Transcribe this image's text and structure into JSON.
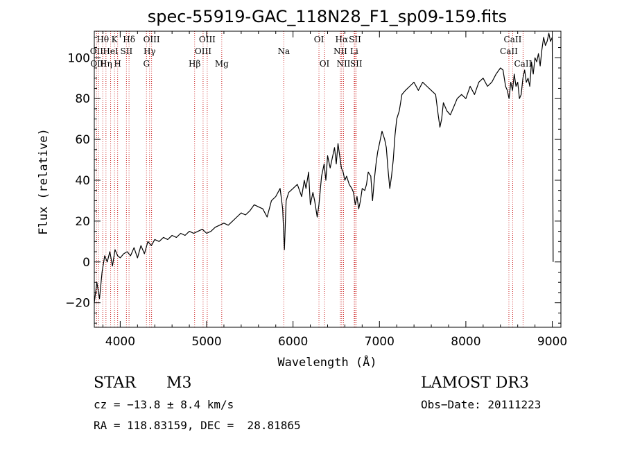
{
  "chart_data": {
    "type": "line",
    "title": "spec-55919-GAC_118N28_F1_sp09-159.fits",
    "xlabel": "Wavelength (Å)",
    "ylabel": "Flux (relative)",
    "xlim": [
      3700,
      9100
    ],
    "ylim": [
      -32,
      113
    ],
    "xticks": [
      4000,
      5000,
      6000,
      7000,
      8000,
      9000
    ],
    "yticks": [
      -20,
      0,
      20,
      40,
      60,
      80,
      100
    ],
    "series": [
      {
        "name": "flux",
        "x": [
          3700,
          3730,
          3760,
          3790,
          3820,
          3850,
          3880,
          3910,
          3940,
          3970,
          4000,
          4040,
          4080,
          4120,
          4160,
          4200,
          4240,
          4280,
          4320,
          4360,
          4400,
          4450,
          4500,
          4550,
          4600,
          4650,
          4700,
          4750,
          4800,
          4850,
          4900,
          4950,
          5000,
          5050,
          5100,
          5150,
          5200,
          5250,
          5300,
          5350,
          5400,
          5450,
          5500,
          5550,
          5600,
          5650,
          5700,
          5750,
          5800,
          5850,
          5880,
          5900,
          5920,
          5950,
          6000,
          6050,
          6100,
          6130,
          6150,
          6180,
          6200,
          6230,
          6250,
          6280,
          6300,
          6330,
          6360,
          6380,
          6400,
          6430,
          6450,
          6480,
          6500,
          6520,
          6540,
          6560,
          6580,
          6600,
          6620,
          6650,
          6680,
          6700,
          6720,
          6740,
          6760,
          6780,
          6800,
          6830,
          6850,
          6870,
          6900,
          6920,
          6940,
          6960,
          6980,
          7000,
          7030,
          7060,
          7080,
          7100,
          7120,
          7140,
          7160,
          7180,
          7200,
          7230,
          7260,
          7300,
          7350,
          7400,
          7450,
          7500,
          7550,
          7600,
          7650,
          7680,
          7700,
          7720,
          7740,
          7780,
          7820,
          7860,
          7900,
          7950,
          8000,
          8050,
          8100,
          8150,
          8200,
          8250,
          8300,
          8350,
          8400,
          8430,
          8460,
          8480,
          8500,
          8520,
          8540,
          8560,
          8580,
          8600,
          8620,
          8640,
          8660,
          8680,
          8700,
          8720,
          8740,
          8760,
          8780,
          8800,
          8820,
          8840,
          8860,
          8880,
          8900,
          8920,
          8940,
          8960,
          8980,
          9000,
          9010
        ],
        "y": [
          -20,
          -10,
          -18,
          -5,
          3,
          0,
          5,
          -2,
          6,
          3,
          2,
          4,
          5,
          3,
          7,
          2,
          8,
          4,
          10,
          8,
          11,
          10,
          12,
          11,
          13,
          12,
          14,
          13,
          15,
          14,
          15,
          16,
          14,
          15,
          17,
          18,
          19,
          18,
          20,
          22,
          24,
          23,
          25,
          28,
          27,
          26,
          22,
          30,
          32,
          36,
          26,
          6,
          30,
          34,
          36,
          38,
          32,
          40,
          36,
          44,
          28,
          34,
          30,
          22,
          28,
          42,
          48,
          40,
          52,
          46,
          50,
          56,
          48,
          58,
          52,
          46,
          44,
          40,
          42,
          38,
          36,
          34,
          28,
          32,
          26,
          30,
          36,
          35,
          38,
          44,
          42,
          30,
          40,
          48,
          54,
          58,
          64,
          60,
          56,
          45,
          36,
          42,
          50,
          62,
          70,
          74,
          82,
          84,
          86,
          88,
          84,
          88,
          86,
          84,
          82,
          72,
          66,
          70,
          78,
          74,
          72,
          76,
          80,
          82,
          80,
          86,
          82,
          88,
          90,
          86,
          88,
          92,
          95,
          94,
          86,
          84,
          80,
          88,
          84,
          92,
          86,
          88,
          80,
          82,
          90,
          94,
          88,
          90,
          86,
          98,
          92,
          100,
          98,
          102,
          96,
          104,
          110,
          106,
          108,
          112,
          108,
          110,
          0
        ]
      }
    ],
    "lines": [
      {
        "label": "Hθ",
        "x": 3798,
        "row": 0
      },
      {
        "label": "K",
        "x": 3934,
        "row": 0
      },
      {
        "label": "Hδ",
        "x": 4102,
        "row": 0
      },
      {
        "label": "OIII",
        "x": 4363,
        "row": 0
      },
      {
        "label": "OIII",
        "x": 5007,
        "row": 0
      },
      {
        "label": "OI",
        "x": 6300,
        "row": 0
      },
      {
        "label": "Hα",
        "x": 6563,
        "row": 0
      },
      {
        "label": "SII",
        "x": 6717,
        "row": 0
      },
      {
        "label": "CaII",
        "x": 8542,
        "row": 0
      },
      {
        "label": "OII",
        "x": 3727,
        "row": 1
      },
      {
        "label": "HeI",
        "x": 3889,
        "row": 1
      },
      {
        "label": "SII",
        "x": 4072,
        "row": 1
      },
      {
        "label": "Hγ",
        "x": 4340,
        "row": 1
      },
      {
        "label": "OIII",
        "x": 4959,
        "row": 1
      },
      {
        "label": "Na",
        "x": 5893,
        "row": 1
      },
      {
        "label": "NII",
        "x": 6548,
        "row": 1
      },
      {
        "label": "Li",
        "x": 6708,
        "row": 1
      },
      {
        "label": "CaII",
        "x": 8498,
        "row": 1
      },
      {
        "label": "OIII",
        "x": 3750,
        "row": 2
      },
      {
        "label": "Hη",
        "x": 3835,
        "row": 2
      },
      {
        "label": "H",
        "x": 3970,
        "row": 2
      },
      {
        "label": "G",
        "x": 4304,
        "row": 2
      },
      {
        "label": "Hβ",
        "x": 4861,
        "row": 2
      },
      {
        "label": "Mg",
        "x": 5175,
        "row": 2
      },
      {
        "label": "OI",
        "x": 6364,
        "row": 2
      },
      {
        "label": "NII",
        "x": 6584,
        "row": 2
      },
      {
        "label": "SII",
        "x": 6731,
        "row": 2
      },
      {
        "label": "CaII",
        "x": 8662,
        "row": 2
      }
    ]
  },
  "info": {
    "object_class": "STAR",
    "subclass": "M3",
    "survey": "LAMOST DR3",
    "redshift": "cz = −13.8 ± 8.4 km/s",
    "obs_date": "Obs−Date: 20111223",
    "coords": "RA = 118.83159, DEC =  28.81865"
  },
  "colors": {
    "axis": "#000000",
    "lines": "#cc2222",
    "flux": "#000000"
  }
}
